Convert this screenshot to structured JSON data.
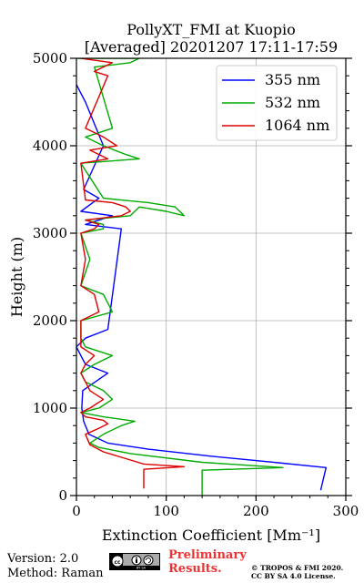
{
  "chart_data": {
    "type": "line",
    "title_line1": "PollyXT_FMI at Kuopio",
    "title_line2": "[Averaged] 20201207 17:11-17:59",
    "xlabel": "Extinction Coefficient [Mm⁻¹]",
    "ylabel": "Height (m)",
    "xlim": [
      0,
      300
    ],
    "ylim": [
      0,
      5000
    ],
    "x_ticks": [
      "0",
      "100",
      "200",
      "300"
    ],
    "y_ticks": [
      "0",
      "1000",
      "2000",
      "3000",
      "4000",
      "5000"
    ],
    "grid": true,
    "legend_position": "top-right",
    "series": [
      {
        "name": "355 nm",
        "color": "#0000ff",
        "x": [
          272,
          278,
          230,
          150,
          80,
          35,
          14,
          8,
          6,
          7,
          35,
          10,
          5,
          0,
          10,
          35,
          50,
          10,
          40,
          5,
          25,
          8,
          30,
          10,
          5,
          0
        ],
        "y": [
          60,
          320,
          370,
          450,
          530,
          600,
          700,
          850,
          1000,
          1200,
          1400,
          1500,
          1600,
          1700,
          1800,
          1900,
          3050,
          3100,
          3200,
          3250,
          3400,
          3500,
          4000,
          4500,
          4600,
          4700
        ]
      },
      {
        "name": "532 nm",
        "color": "#00aa00",
        "x": [
          140,
          140,
          230,
          140,
          60,
          25,
          15,
          30,
          50,
          65,
          30,
          5,
          25,
          40,
          30,
          10,
          5,
          20,
          40,
          10,
          5,
          5,
          40,
          30,
          5,
          15,
          5,
          30,
          30,
          10,
          60,
          70,
          100,
          120,
          110,
          80,
          30,
          5,
          70,
          55,
          30,
          10,
          40,
          20,
          60,
          70,
          5,
          0
        ],
        "y": [
          0,
          290,
          320,
          380,
          480,
          550,
          600,
          700,
          800,
          850,
          900,
          950,
          1000,
          1100,
          1200,
          1300,
          1400,
          1500,
          1600,
          1700,
          1800,
          2000,
          2100,
          2300,
          2400,
          2700,
          3000,
          3050,
          3100,
          3150,
          3200,
          3300,
          3250,
          3200,
          3300,
          3350,
          3400,
          3800,
          3850,
          3900,
          4000,
          4100,
          4200,
          4900,
          4950,
          5000,
          5000,
          5000
        ]
      },
      {
        "name": "1064 nm",
        "color": "#dd0000",
        "x": [
          75,
          75,
          120,
          75,
          30,
          15,
          10,
          25,
          35,
          30,
          10,
          5,
          15,
          30,
          15,
          10,
          5,
          10,
          20,
          5,
          5,
          25,
          20,
          5,
          10,
          5,
          20,
          25,
          10,
          50,
          60,
          55,
          40,
          10,
          5,
          35,
          25,
          15,
          45,
          30,
          10,
          35,
          20,
          40,
          5
        ],
        "y": [
          80,
          300,
          330,
          360,
          500,
          580,
          700,
          770,
          820,
          860,
          900,
          950,
          1000,
          1100,
          1200,
          1300,
          1400,
          1500,
          1600,
          1700,
          2000,
          2100,
          2300,
          2400,
          2700,
          3000,
          3050,
          3100,
          3150,
          3200,
          3250,
          3300,
          3350,
          3380,
          3800,
          3850,
          3900,
          3950,
          4000,
          4100,
          4200,
          4800,
          4850,
          4950,
          5000
        ]
      }
    ]
  },
  "footer": {
    "version": "Version: 2.0",
    "method": "Method: Raman",
    "preliminary_line1": "Preliminary",
    "preliminary_line2": "Results.",
    "copyright_line1": "© TROPOS & FMI 2020.",
    "copyright_line2": "CC BY SA 4.0 License.",
    "license_badge": "cc by sa"
  },
  "colors": {
    "preliminary": "#ee3333",
    "grid": "#b0b0b0"
  }
}
